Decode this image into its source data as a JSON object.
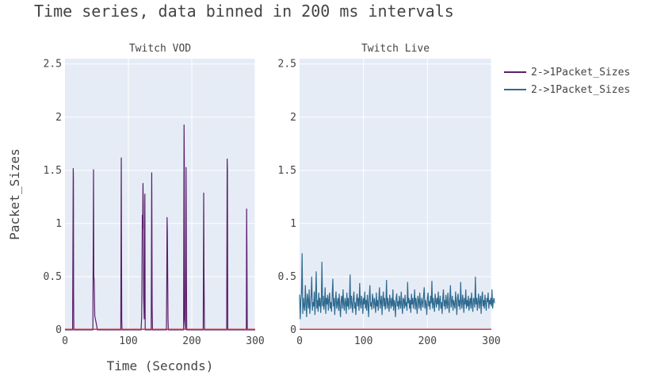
{
  "title": "Time series, data binned in 200 ms intervals",
  "colors": {
    "vod": "#5b1e6b",
    "live": "#2f6a8f",
    "baseline": "#d62728",
    "plot_bg": "#e5ecf6",
    "grid": "#ffffff"
  },
  "chart_data": [
    {
      "type": "line",
      "subplot_title": "Twitch VOD",
      "xlabel": "Time (Seconds)",
      "ylabel": "Packet_Sizes",
      "xlim": [
        0,
        300
      ],
      "ylim": [
        0,
        2.55
      ],
      "x_ticks": [
        "0",
        "100",
        "200",
        "300"
      ],
      "y_ticks": [
        "0",
        "0.5",
        "1",
        "1.5",
        "2",
        "2.5"
      ],
      "series": [
        {
          "name": "2->1Packet_Sizes",
          "color": "#5b1e6b",
          "x": [
            0,
            12,
            13,
            13.3,
            13.6,
            14,
            44,
            45,
            45.5,
            46,
            47,
            48,
            50,
            51,
            88,
            88.8,
            89.1,
            89.5,
            90,
            120,
            121,
            122,
            122.5,
            123,
            123.5,
            124,
            125,
            126,
            126.5,
            136,
            136.8,
            137,
            137.5,
            138,
            160,
            160.5,
            161,
            161.5,
            162,
            162.5,
            163,
            187,
            187.8,
            188.2,
            188.6,
            190,
            191,
            191.5,
            192,
            218,
            218.8,
            219.3,
            220,
            255,
            255.8,
            256.2,
            256.8,
            286,
            286.5,
            287,
            287.5,
            300
          ],
          "y": [
            0,
            0,
            1.52,
            1.42,
            0.3,
            0,
            0,
            1.51,
            0.5,
            0.47,
            0.13,
            0.1,
            0.04,
            0,
            0,
            1.62,
            0.9,
            0.1,
            0,
            0,
            0.12,
            1.08,
            0.95,
            1.38,
            1.2,
            0.3,
            0.1,
            1.28,
            0,
            0,
            1.48,
            1.2,
            0.2,
            0,
            0,
            0.4,
            1.06,
            0.92,
            0.5,
            0.1,
            0,
            0,
            1.93,
            1.6,
            0.1,
            0,
            1.53,
            0.6,
            0,
            0,
            1.29,
            0.5,
            0,
            0,
            1.61,
            1.5,
            0,
            0,
            1.14,
            0.7,
            0,
            0
          ]
        },
        {
          "name": "",
          "color": "#d62728",
          "x": [
            0,
            300
          ],
          "y": [
            0.005,
            0.005
          ]
        }
      ]
    },
    {
      "type": "line",
      "subplot_title": "Twitch Live",
      "xlim": [
        0,
        300
      ],
      "ylim": [
        0,
        2.55
      ],
      "x_ticks": [
        "0",
        "100",
        "200",
        "300"
      ],
      "y_ticks": [
        "0",
        "0.5",
        "1",
        "1.5",
        "2",
        "2.5"
      ],
      "series": [
        {
          "name": "2->1Packet_Sizes",
          "color": "#2f6a8f",
          "x_start": 0,
          "x_step": 1,
          "y": [
            0.33,
            0.1,
            0.28,
            0.35,
            0.72,
            0.15,
            0.3,
            0.22,
            0.18,
            0.42,
            0.25,
            0.12,
            0.34,
            0.28,
            0.2,
            0.38,
            0.15,
            0.24,
            0.32,
            0.5,
            0.18,
            0.26,
            0.22,
            0.36,
            0.14,
            0.3,
            0.55,
            0.2,
            0.28,
            0.17,
            0.35,
            0.22,
            0.3,
            0.16,
            0.27,
            0.64,
            0.22,
            0.32,
            0.19,
            0.25,
            0.4,
            0.15,
            0.3,
            0.24,
            0.33,
            0.18,
            0.28,
            0.35,
            0.2,
            0.26,
            0.17,
            0.32,
            0.48,
            0.22,
            0.3,
            0.14,
            0.27,
            0.36,
            0.2,
            0.25,
            0.3,
            0.18,
            0.34,
            0.22,
            0.12,
            0.28,
            0.32,
            0.2,
            0.38,
            0.24,
            0.18,
            0.3,
            0.26,
            0.15,
            0.35,
            0.22,
            0.3,
            0.19,
            0.27,
            0.52,
            0.2,
            0.32,
            0.24,
            0.16,
            0.3,
            0.36,
            0.2,
            0.26,
            0.14,
            0.28,
            0.34,
            0.22,
            0.3,
            0.18,
            0.44,
            0.25,
            0.2,
            0.32,
            0.27,
            0.15,
            0.3,
            0.24,
            0.36,
            0.2,
            0.28,
            0.18,
            0.33,
            0.25,
            0.12,
            0.3,
            0.42,
            0.22,
            0.26,
            0.19,
            0.34,
            0.28,
            0.2,
            0.3,
            0.24,
            0.16,
            0.35,
            0.22,
            0.28,
            0.18,
            0.3,
            0.4,
            0.2,
            0.26,
            0.32,
            0.14,
            0.28,
            0.36,
            0.22,
            0.3,
            0.19,
            0.25,
            0.47,
            0.2,
            0.3,
            0.24,
            0.17,
            0.33,
            0.27,
            0.2,
            0.3,
            0.22,
            0.38,
            0.18,
            0.28,
            0.25,
            0.12,
            0.3,
            0.34,
            0.22,
            0.27,
            0.19,
            0.32,
            0.25,
            0.2,
            0.36,
            0.24,
            0.15,
            0.3,
            0.28,
            0.2,
            0.33,
            0.22,
            0.26,
            0.18,
            0.45,
            0.25,
            0.3,
            0.2,
            0.28,
            0.16,
            0.34,
            0.24,
            0.3,
            0.2,
            0.27,
            0.38,
            0.19,
            0.3,
            0.23,
            0.15,
            0.32,
            0.28,
            0.2,
            0.35,
            0.24,
            0.18,
            0.3,
            0.26,
            0.21,
            0.33,
            0.4,
            0.2,
            0.28,
            0.24,
            0.14,
            0.3,
            0.35,
            0.22,
            0.27,
            0.19,
            0.32,
            0.25,
            0.46,
            0.2,
            0.3,
            0.24,
            0.17,
            0.34,
            0.28,
            0.21,
            0.3,
            0.24,
            0.36,
            0.18,
            0.27,
            0.32,
            0.2,
            0.26,
            0.15,
            0.3,
            0.38,
            0.22,
            0.28,
            0.19,
            0.33,
            0.25,
            0.2,
            0.35,
            0.24,
            0.16,
            0.3,
            0.42,
            0.21,
            0.27,
            0.32,
            0.18,
            0.28,
            0.24,
            0.2,
            0.36,
            0.26,
            0.14,
            0.3,
            0.34,
            0.22,
            0.28,
            0.19,
            0.45,
            0.25,
            0.2,
            0.33,
            0.27,
            0.16,
            0.3,
            0.24,
            0.38,
            0.2,
            0.28,
            0.22,
            0.32,
            0.18,
            0.26,
            0.3,
            0.2,
            0.35,
            0.24,
            0.17,
            0.3,
            0.28,
            0.21,
            0.5,
            0.24,
            0.3,
            0.18,
            0.27,
            0.34,
            0.2,
            0.26,
            0.32,
            0.15,
            0.3,
            0.36,
            0.22,
            0.28,
            0.2,
            0.33,
            0.25,
            0.18,
            0.3,
            0.26,
            0.35,
            0.2,
            0.28,
            0.24,
            0.3,
            0.22,
            0.38,
            0.2,
            0.27,
            0.3,
            0.25
          ]
        },
        {
          "name": "",
          "color": "#d62728",
          "x": [
            0,
            300
          ],
          "y": [
            0.005,
            0.005
          ]
        }
      ]
    }
  ],
  "legend": [
    {
      "label": "2->1Packet_Sizes",
      "color": "#5b1e6b"
    },
    {
      "label": "2->1Packet_Sizes",
      "color": "#2f6a8f"
    }
  ]
}
